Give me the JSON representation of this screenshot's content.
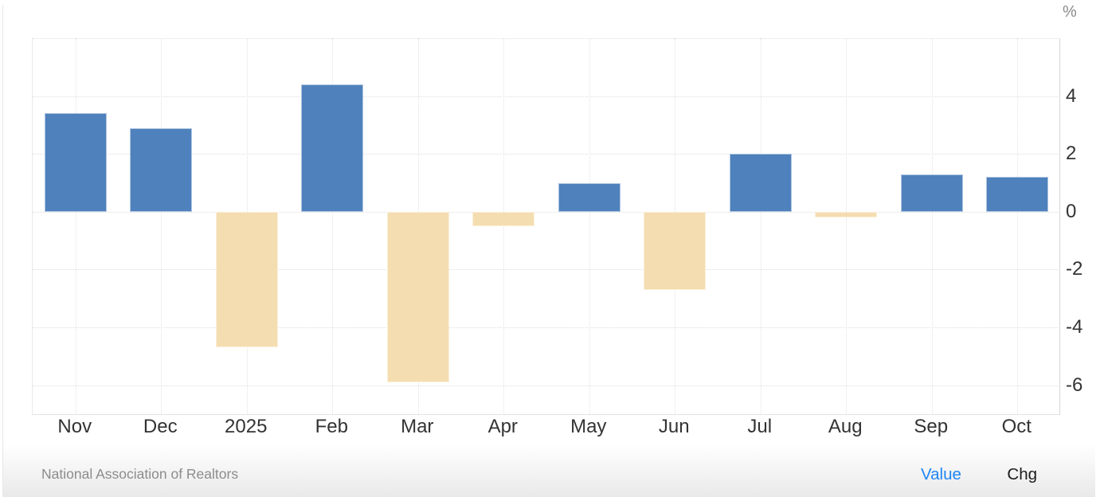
{
  "chart_data": {
    "type": "bar",
    "categories": [
      "Nov",
      "Dec",
      "2025",
      "Feb",
      "Mar",
      "Apr",
      "May",
      "Jun",
      "Jul",
      "Aug",
      "Sep",
      "Oct"
    ],
    "values": [
      3.4,
      2.9,
      -4.7,
      4.4,
      -5.9,
      -0.5,
      1.0,
      -2.7,
      2.0,
      -0.2,
      1.3,
      1.2
    ],
    "title": "",
    "xlabel": "",
    "ylabel": "%",
    "y_ticks": [
      4,
      2,
      0,
      -2,
      -4,
      -6
    ],
    "ylim": [
      -7,
      6
    ],
    "grid": "dotted",
    "legend_position": "none",
    "colors": {
      "positive_bar": "#4f81bc",
      "negative_bar": "#f4ddb0"
    }
  },
  "footer": {
    "source": "National Association of Realtors",
    "links": [
      {
        "label": "Value",
        "active": true
      },
      {
        "label": "Chg",
        "active": false
      }
    ]
  },
  "colors": {
    "active_link_blue": "#1e86f5",
    "axis_text": "#333333",
    "muted_text": "#8c8c8c"
  }
}
